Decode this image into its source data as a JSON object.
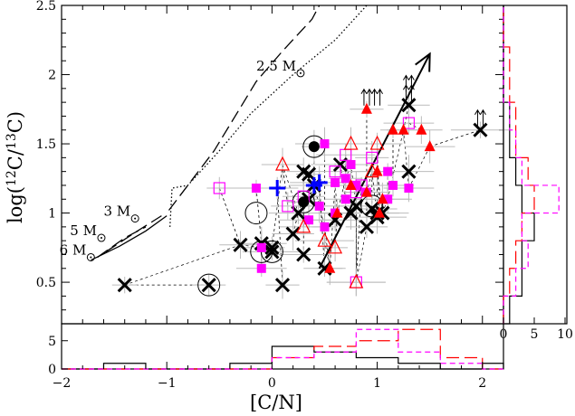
{
  "chart_data": {
    "type": "scatter",
    "xlabel": "[C/N]",
    "ylabel": "log(12C/13C)",
    "ylabel_parts": {
      "pre": "log(",
      "sup1": "12",
      "mid": "C/",
      "sup2": "13",
      "post": "C)"
    },
    "xlim": [
      -2,
      2.2
    ],
    "ylim": [
      0.2,
      2.5
    ],
    "x_ticks": [
      -2,
      -1,
      0,
      1,
      2
    ],
    "y_ticks": [
      0.5,
      1,
      1.5,
      2,
      2.5
    ],
    "grid": false,
    "legend": "none",
    "tracks": [
      {
        "label_num": "2.5",
        "label_unit": "M",
        "label_x": -0.15,
        "label_y": 2.03,
        "style": "long-dash",
        "points": [
          [
            -0.98,
            1.02
          ],
          [
            -0.75,
            1.25
          ],
          [
            -0.55,
            1.45
          ],
          [
            -0.35,
            1.7
          ],
          [
            -0.15,
            1.95
          ],
          [
            0.1,
            2.17
          ],
          [
            0.38,
            2.4
          ],
          [
            0.45,
            2.5
          ]
        ]
      },
      {
        "label_num": "",
        "label_unit": "",
        "style": "dotted",
        "points": [
          [
            -0.97,
            0.9
          ],
          [
            -0.95,
            1.18
          ],
          [
            -0.8,
            1.2
          ],
          [
            -0.5,
            1.45
          ],
          [
            -0.2,
            1.72
          ],
          [
            0.2,
            2.0
          ],
          [
            0.6,
            2.25
          ],
          [
            0.9,
            2.5
          ]
        ]
      },
      {
        "label_num": "3",
        "label_unit": "M",
        "label_x": -1.6,
        "label_y": 0.98,
        "style": "long-dash",
        "points": [
          [
            -1.58,
            0.72
          ],
          [
            -1.3,
            0.86
          ],
          [
            -1.05,
            0.98
          ]
        ]
      },
      {
        "label_num": "5",
        "label_unit": "M",
        "label_x": -1.92,
        "label_y": 0.84,
        "style": "long-dash",
        "points": [
          [
            -1.66,
            0.68
          ],
          [
            -1.4,
            0.82
          ],
          [
            -1.2,
            0.9
          ]
        ]
      },
      {
        "label_num": "6",
        "label_unit": "M",
        "label_x": -2.02,
        "label_y": 0.7,
        "style": "solid",
        "points": [
          [
            -1.72,
            0.66
          ],
          [
            -1.45,
            0.76
          ],
          [
            -1.2,
            0.87
          ],
          [
            -1.0,
            0.98
          ]
        ]
      }
    ],
    "series": [
      {
        "marker": "cross",
        "color": "#000000",
        "points": [
          [
            -1.4,
            0.48
          ],
          [
            -0.6,
            0.48
          ],
          [
            -0.3,
            0.77
          ],
          [
            -0.1,
            0.78
          ],
          [
            0.0,
            0.72
          ],
          [
            0.0,
            0.75
          ],
          [
            0.1,
            0.48
          ],
          [
            0.2,
            0.85
          ],
          [
            0.3,
            0.7
          ],
          [
            0.25,
            1.0
          ],
          [
            0.35,
            1.1
          ],
          [
            0.4,
            1.2
          ],
          [
            0.5,
            0.6
          ],
          [
            0.6,
            0.95
          ],
          [
            0.65,
            1.35
          ],
          [
            0.75,
            1.0
          ],
          [
            0.8,
            1.05
          ],
          [
            0.9,
            0.9
          ],
          [
            0.95,
            1.03
          ],
          [
            1.0,
            0.97
          ],
          [
            1.0,
            1.0
          ],
          [
            1.05,
            1.0
          ],
          [
            1.3,
            1.78
          ],
          [
            1.3,
            1.3
          ],
          [
            1.98,
            1.6
          ],
          [
            0.35,
            1.28
          ],
          [
            0.3,
            1.3
          ]
        ]
      },
      {
        "marker": "filled-square",
        "color": "#ff00ff",
        "points": [
          [
            -0.1,
            0.75
          ],
          [
            -0.1,
            0.6
          ],
          [
            0.35,
            0.95
          ],
          [
            0.5,
            0.9
          ],
          [
            0.6,
            1.0
          ],
          [
            0.7,
            1.1
          ],
          [
            0.75,
            1.35
          ],
          [
            0.8,
            1.2
          ],
          [
            0.9,
            1.15
          ],
          [
            1.1,
            1.3
          ],
          [
            1.15,
            1.2
          ],
          [
            1.3,
            1.18
          ],
          [
            0.5,
            1.5
          ],
          [
            0.6,
            1.22
          ],
          [
            0.7,
            1.25
          ],
          [
            1.1,
            1.1
          ],
          [
            0.45,
            1.05
          ],
          [
            -0.15,
            1.18
          ]
        ]
      },
      {
        "marker": "open-square",
        "color": "#ff00ff",
        "points": [
          [
            -0.5,
            1.18
          ],
          [
            0.15,
            1.05
          ],
          [
            0.3,
            1.12
          ],
          [
            0.6,
            1.3
          ],
          [
            0.7,
            1.42
          ],
          [
            0.8,
            1.15
          ],
          [
            0.95,
            1.4
          ],
          [
            0.85,
            1.2
          ],
          [
            1.3,
            1.65
          ],
          [
            0.8,
            0.5
          ]
        ]
      },
      {
        "marker": "filled-triangle",
        "color": "#ff0000",
        "points": [
          [
            0.55,
            0.6
          ],
          [
            0.9,
            1.75
          ],
          [
            0.9,
            1.15
          ],
          [
            1.0,
            1.3
          ],
          [
            1.05,
            1.1
          ],
          [
            1.15,
            1.6
          ],
          [
            1.25,
            1.6
          ],
          [
            1.42,
            1.6
          ],
          [
            1.5,
            1.48
          ],
          [
            1.02,
            1.0
          ],
          [
            0.75,
            1.2
          ],
          [
            0.62,
            1.0
          ]
        ]
      },
      {
        "marker": "open-triangle",
        "color": "#ff0000",
        "points": [
          [
            0.1,
            1.35
          ],
          [
            0.3,
            0.9
          ],
          [
            0.5,
            0.8
          ],
          [
            0.6,
            0.75
          ],
          [
            0.75,
            1.5
          ],
          [
            0.95,
            1.3
          ],
          [
            1.0,
            1.5
          ],
          [
            0.8,
            0.5
          ]
        ]
      },
      {
        "marker": "filled-circle",
        "color": "#000000",
        "points": [
          [
            0.4,
            1.48
          ],
          [
            0.3,
            1.08
          ]
        ]
      },
      {
        "marker": "plus",
        "color": "#0000ff",
        "points": [
          [
            0.05,
            1.18
          ],
          [
            0.4,
            1.2
          ],
          [
            0.45,
            1.22
          ]
        ]
      }
    ],
    "circled_points": [
      [
        -0.6,
        0.48
      ],
      [
        -0.1,
        0.72
      ],
      [
        0.0,
        0.72
      ],
      [
        -0.15,
        1.0
      ],
      [
        0.3,
        1.08
      ],
      [
        0.4,
        1.48
      ],
      [
        0.95,
        1.05
      ]
    ],
    "lower_limits": [
      [
        0.9,
        1.75
      ],
      [
        1.0,
        1.75
      ],
      [
        1.3,
        1.78
      ],
      [
        1.98,
        1.6
      ],
      [
        1.3,
        1.85
      ]
    ],
    "arrow": {
      "from": [
        0.45,
        0.6
      ],
      "to": [
        1.5,
        2.15
      ]
    },
    "histograms": {
      "x_bins": [
        -2.0,
        -1.6,
        -1.2,
        -0.8,
        -0.4,
        0.0,
        0.4,
        0.8,
        1.2,
        1.6,
        2.0,
        2.2
      ],
      "x_counts": [
        {
          "color": "#000000",
          "style": "solid",
          "counts": [
            0,
            1,
            0,
            0,
            1,
            4,
            3,
            2,
            1,
            0,
            1
          ]
        },
        {
          "color": "#ff0000",
          "style": "long-dash",
          "counts": [
            0,
            0,
            0,
            0,
            0,
            2,
            4,
            5,
            7,
            2,
            0
          ]
        },
        {
          "color": "#ff00ff",
          "style": "dashed",
          "counts": [
            0,
            0,
            0,
            0,
            0,
            2,
            3,
            7,
            3,
            1,
            0
          ]
        }
      ],
      "x_axis_ticks": [
        0,
        5
      ],
      "y_bins": [
        0.2,
        0.4,
        0.6,
        0.8,
        1.0,
        1.2,
        1.4,
        1.6,
        1.8,
        2.0,
        2.2,
        2.5
      ],
      "y_counts": [
        {
          "color": "#000000",
          "style": "solid",
          "counts": [
            1,
            3,
            3,
            5,
            3,
            2,
            1,
            1,
            0,
            0,
            0
          ]
        },
        {
          "color": "#ff0000",
          "style": "long-dash",
          "counts": [
            0,
            1,
            2,
            3,
            5,
            4,
            2,
            2,
            1,
            1,
            0
          ]
        },
        {
          "color": "#ff00ff",
          "style": "dashed",
          "counts": [
            0,
            2,
            4,
            3,
            9,
            3,
            2,
            1,
            0,
            0,
            0
          ]
        }
      ],
      "y_axis_ticks": [
        0,
        5,
        10
      ]
    }
  }
}
